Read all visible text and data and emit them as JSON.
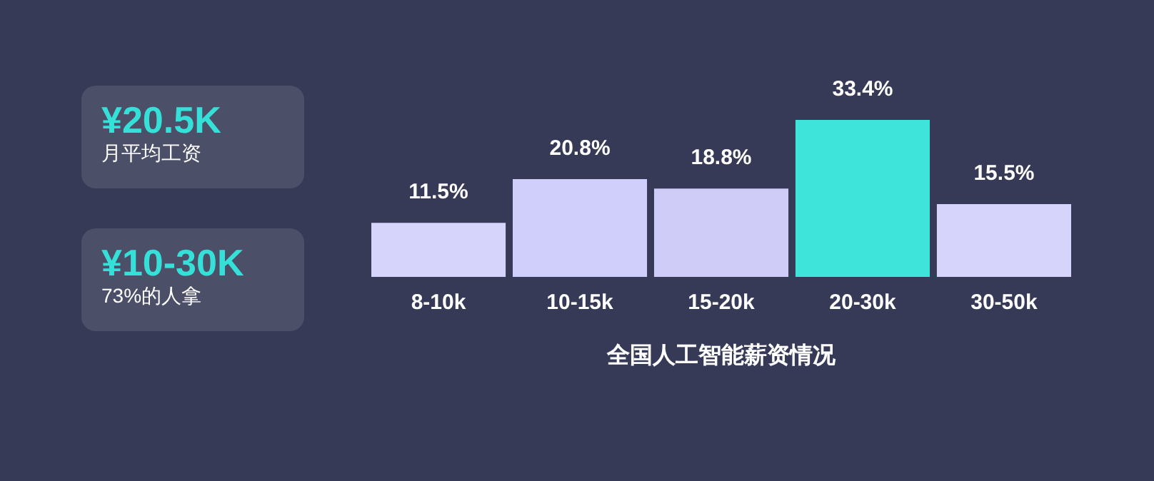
{
  "chart_data": [
    {
      "type": "other",
      "annotations": [
        "¥20.5K",
        "月平均工资",
        "¥10-30K",
        "73%的人拿"
      ]
    },
    {
      "type": "bar",
      "title": "全国人工智能薪资情况",
      "categories": [
        "8-10k",
        "10-15k",
        "15-20k",
        "20-30k",
        "30-50k"
      ],
      "values": [
        11.5,
        20.8,
        18.8,
        33.4,
        15.5
      ],
      "value_labels": [
        "11.5%",
        "20.8%",
        "18.8%",
        "33.4%",
        "15.5%"
      ],
      "colors": [
        "#d6d4fa",
        "#d0cefa",
        "#cfcdf8",
        "#3ee3d9",
        "#d6d4fa"
      ]
    }
  ]
}
